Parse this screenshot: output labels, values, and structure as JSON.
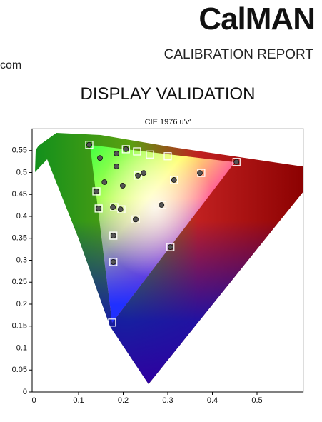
{
  "header": {
    "logo": "CalMAN",
    "report": "CALIBRATION REPORT",
    "site": "com",
    "heading": "DISPLAY VALIDATION"
  },
  "chart_data": {
    "type": "scatter",
    "title": "CIE 1976 u'v'",
    "xlim": [
      0,
      0.6
    ],
    "ylim": [
      0,
      0.6
    ],
    "xticks": [
      0,
      0.1,
      0.2,
      0.3,
      0.4,
      0.5
    ],
    "yticks": [
      0,
      0.05,
      0.1,
      0.15,
      0.2,
      0.25,
      0.3,
      0.35,
      0.4,
      0.45,
      0.5,
      0.55
    ],
    "series": [
      {
        "marker": "square",
        "color": "#ffffff",
        "x": [
          0.124,
          0.206,
          0.231,
          0.26,
          0.3,
          0.454,
          0.375,
          0.314,
          0.233,
          0.14,
          0.145,
          0.18,
          0.196,
          0.228,
          0.288,
          0.178,
          0.306,
          0.178,
          0.175
        ],
        "values": [
          0.563,
          0.553,
          0.548,
          0.541,
          0.537,
          0.524,
          0.499,
          0.483,
          0.493,
          0.457,
          0.418,
          0.421,
          0.416,
          0.393,
          0.426,
          0.356,
          0.33,
          0.296,
          0.158
        ]
      },
      {
        "marker": "circle",
        "color": "#555555",
        "x": [
          0.124,
          0.148,
          0.185,
          0.206,
          0.185,
          0.158,
          0.199,
          0.246,
          0.233,
          0.314,
          0.372,
          0.454,
          0.14,
          0.145,
          0.177,
          0.194,
          0.228,
          0.286,
          0.178,
          0.306,
          0.178
        ],
        "values": [
          0.563,
          0.533,
          0.543,
          0.553,
          0.514,
          0.478,
          0.47,
          0.499,
          0.493,
          0.483,
          0.499,
          0.524,
          0.457,
          0.418,
          0.421,
          0.416,
          0.393,
          0.426,
          0.356,
          0.33,
          0.296
        ]
      }
    ]
  }
}
